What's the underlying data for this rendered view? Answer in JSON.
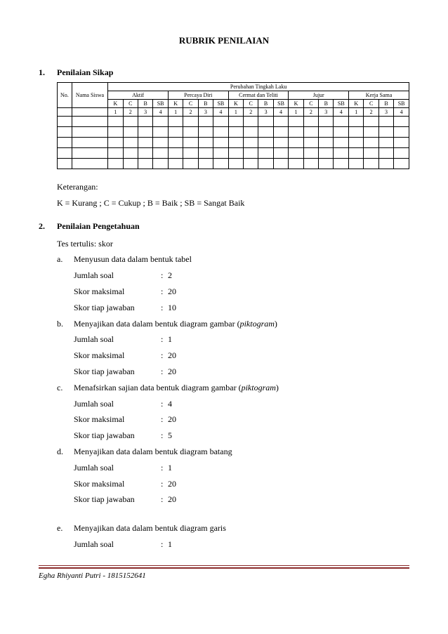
{
  "title": "RUBRIK PENILAIAN",
  "section1": {
    "num": "1.",
    "title": "Penilaian Sikap",
    "table": {
      "col_no": "No.",
      "col_nama": "Nama Siswa",
      "header_top": "Perubahan Tingkah Laku",
      "groups": [
        "Aktif",
        "Percaya Diri",
        "Cermat dan Teliti",
        "Jujur",
        "Kerja Sama"
      ],
      "subcols": [
        "K",
        "C",
        "B",
        "SB"
      ],
      "nums": [
        "1",
        "2",
        "3",
        "4"
      ],
      "blank_rows": 5
    },
    "keterangan_label": "Keterangan:",
    "keterangan_text": "K = Kurang ; C = Cukup ; B = Baik ; SB = Sangat Baik"
  },
  "section2": {
    "num": "2.",
    "title": "Penilaian Pengetahuan",
    "intro": "Tes tertulis:  skor",
    "items": [
      {
        "letter": "a.",
        "desc": "Menyusun  data dalam bentuk  tabel",
        "rows": [
          [
            "Jumlah  soal",
            "2"
          ],
          [
            "Skor maksimal",
            "20"
          ],
          [
            "Skor tiap jawaban",
            "10"
          ]
        ]
      },
      {
        "letter": "b.",
        "desc_pre": "Menyajikan  data dalam  bentuk  diagram  gambar  (",
        "desc_it": "piktogram",
        "desc_post": ")",
        "rows": [
          [
            "Jumlah  soal",
            "1"
          ],
          [
            "Skor maksimal",
            "20"
          ],
          [
            "Skor tiap jawaban",
            "20"
          ]
        ]
      },
      {
        "letter": "c.",
        "desc_pre": "Menafsirkan  sajian data bentuk diagram  gambar (",
        "desc_it": "piktogram",
        "desc_post": ")",
        "rows": [
          [
            "Jumlah  soal",
            "4"
          ],
          [
            "Skor maksimal",
            "20"
          ],
          [
            "Skor tiap jawaban",
            "5"
          ]
        ]
      },
      {
        "letter": "d.",
        "desc": "Menyajikan  data dalam  bentuk  diagram  batang",
        "rows": [
          [
            "Jumlah  soal",
            "1"
          ],
          [
            "Skor maksimal",
            "20"
          ],
          [
            "Skor tiap jawaban",
            "20"
          ]
        ]
      },
      {
        "letter": "e.",
        "desc": "Menyajikan  data dalam  bentuk  diagram  garis",
        "rows": [
          [
            "Jumlah  soal",
            "1"
          ]
        ]
      }
    ]
  },
  "footer": "Egha Rhiyanti  Putri - 1815152641"
}
